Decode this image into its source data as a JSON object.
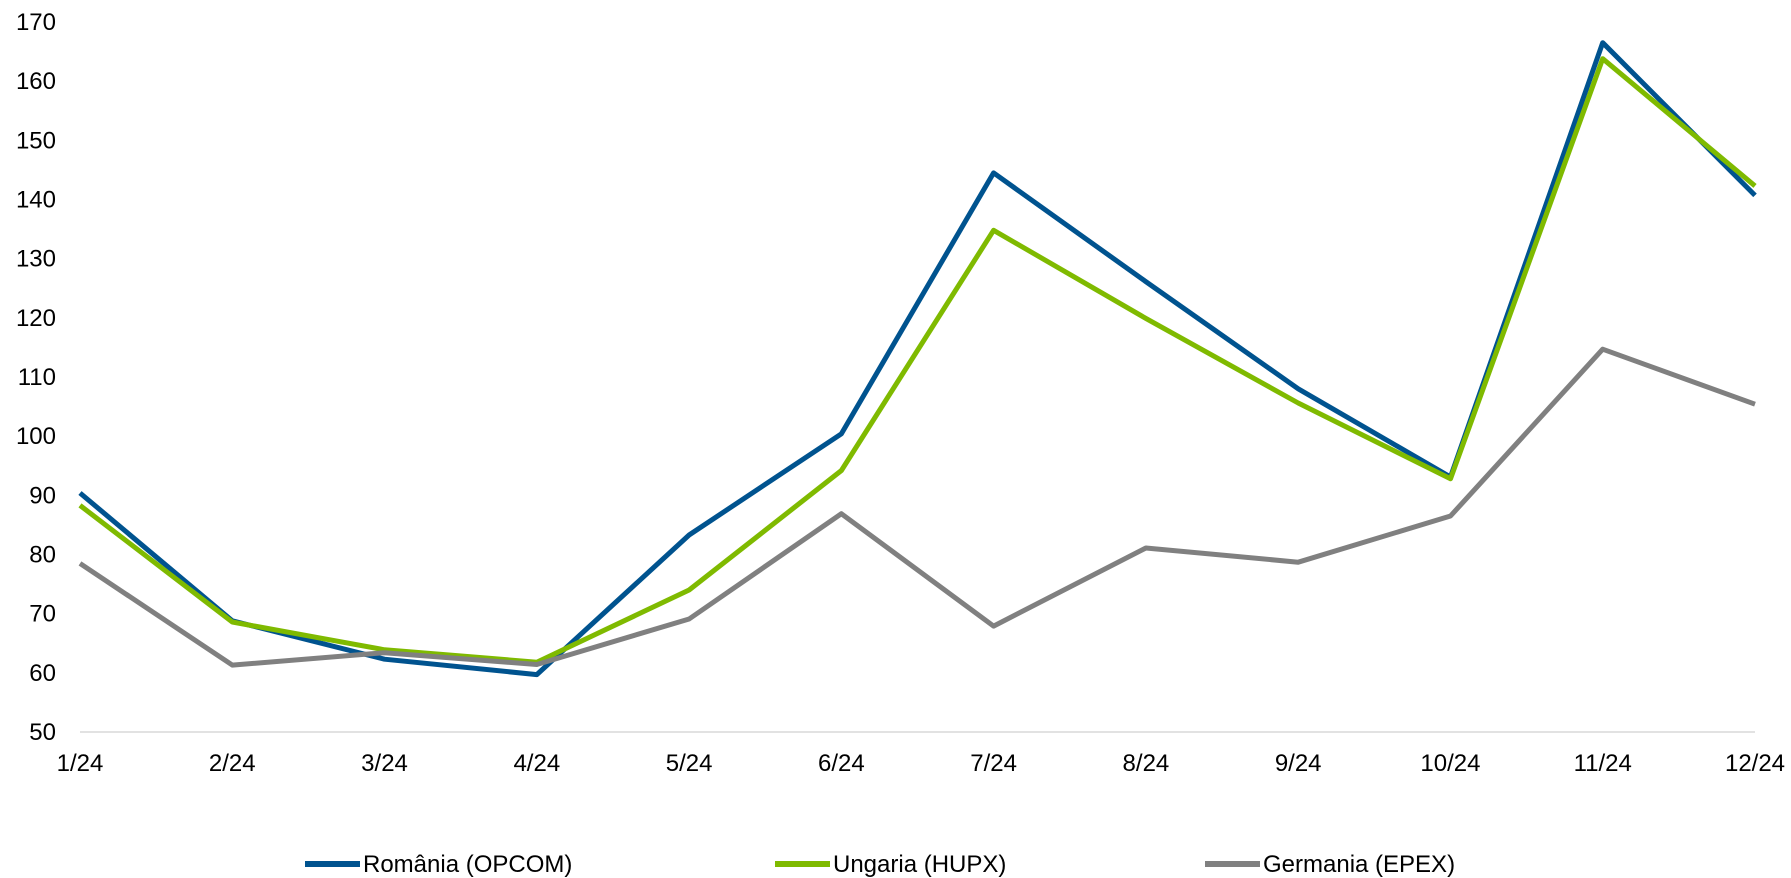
{
  "chart_data": {
    "type": "line",
    "title": "",
    "xlabel": "",
    "ylabel": "",
    "x": [
      "1/24",
      "2/24",
      "3/24",
      "4/24",
      "5/24",
      "6/24",
      "7/24",
      "8/24",
      "9/24",
      "10/24",
      "11/24",
      "12/24"
    ],
    "yticks": [
      "50",
      "60",
      "70",
      "80",
      "90",
      "100",
      "110",
      "120",
      "130",
      "140",
      "150",
      "160",
      "170"
    ],
    "ylim": [
      50,
      170
    ],
    "grid": false,
    "legend_position": "bottom",
    "series": [
      {
        "name": "România (OPCOM)",
        "color": "#00538f",
        "values": [
          90.4,
          68.8,
          62.3,
          59.7,
          83.3,
          100.4,
          144.5,
          126.1,
          108.0,
          93.1,
          166.5,
          140.7
        ]
      },
      {
        "name": "Ungaria (HUPX)",
        "color": "#7fba00",
        "values": [
          88.3,
          68.6,
          63.9,
          61.8,
          74.0,
          94.2,
          134.8,
          119.9,
          105.6,
          92.8,
          163.8,
          142.3
        ]
      },
      {
        "name": "Germania (EPEX)",
        "color": "#808080",
        "values": [
          78.5,
          61.3,
          63.4,
          61.4,
          69.1,
          86.9,
          67.9,
          81.1,
          78.7,
          86.5,
          114.7,
          105.4
        ]
      }
    ]
  }
}
